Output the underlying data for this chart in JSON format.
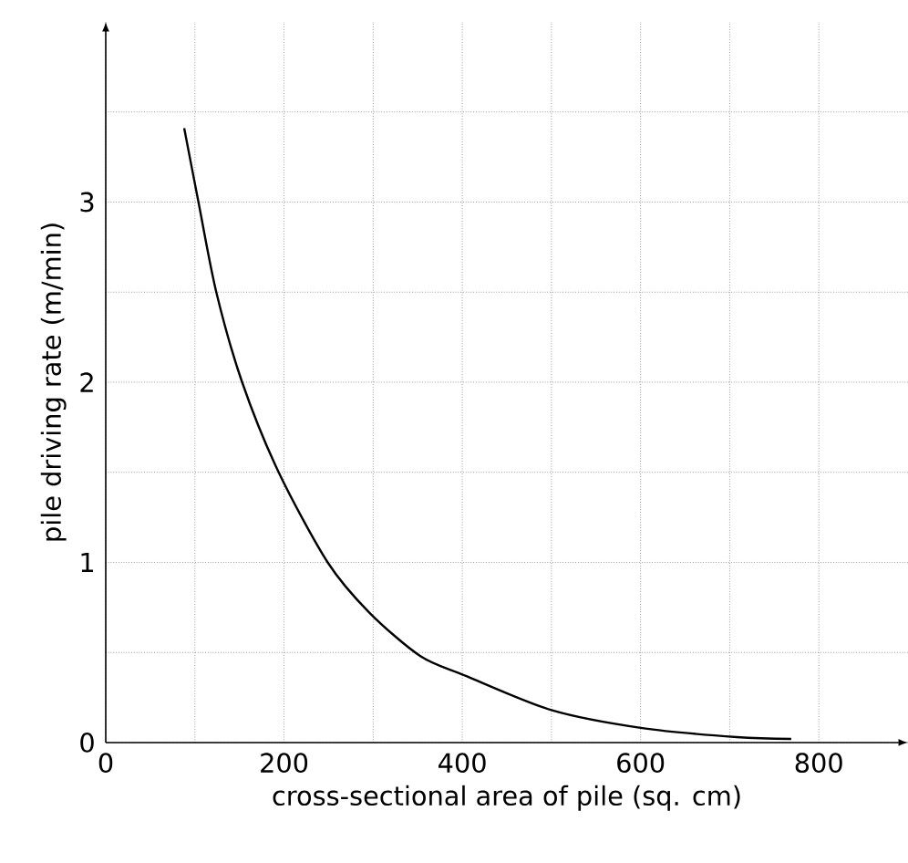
{
  "chart_data": {
    "type": "line",
    "xlabel": "cross-sectional area of pile (sq. cm)",
    "ylabel": "pile driving rate  (m/min)",
    "xlim": [
      0,
      900
    ],
    "ylim": [
      0,
      4
    ],
    "xticks": [
      0,
      {
        "value": 100,
        "label": null
      },
      200,
      {
        "value": 300,
        "label": null
      },
      400,
      {
        "value": 500,
        "label": null
      },
      600,
      {
        "value": 700,
        "label": null
      },
      800
    ],
    "yticks": [
      0,
      {
        "value": 0.5,
        "label": null
      },
      1,
      {
        "value": 1.5,
        "label": null
      },
      2,
      {
        "value": 2.5,
        "label": null
      },
      3,
      {
        "value": 3.5,
        "label": null
      }
    ],
    "grid": true,
    "marker": "none",
    "line_style": "solid",
    "series": [
      {
        "color": "#000000",
        "x": [
          88,
          104,
          124,
          153,
          194,
          249,
          296,
          353,
          404,
          500,
          602,
          708,
          769
        ],
        "values": [
          3.41,
          3.0,
          2.5,
          2.0,
          1.5,
          1.0,
          0.72,
          0.48,
          0.37,
          0.18,
          0.08,
          0.03,
          0.02
        ]
      }
    ]
  }
}
